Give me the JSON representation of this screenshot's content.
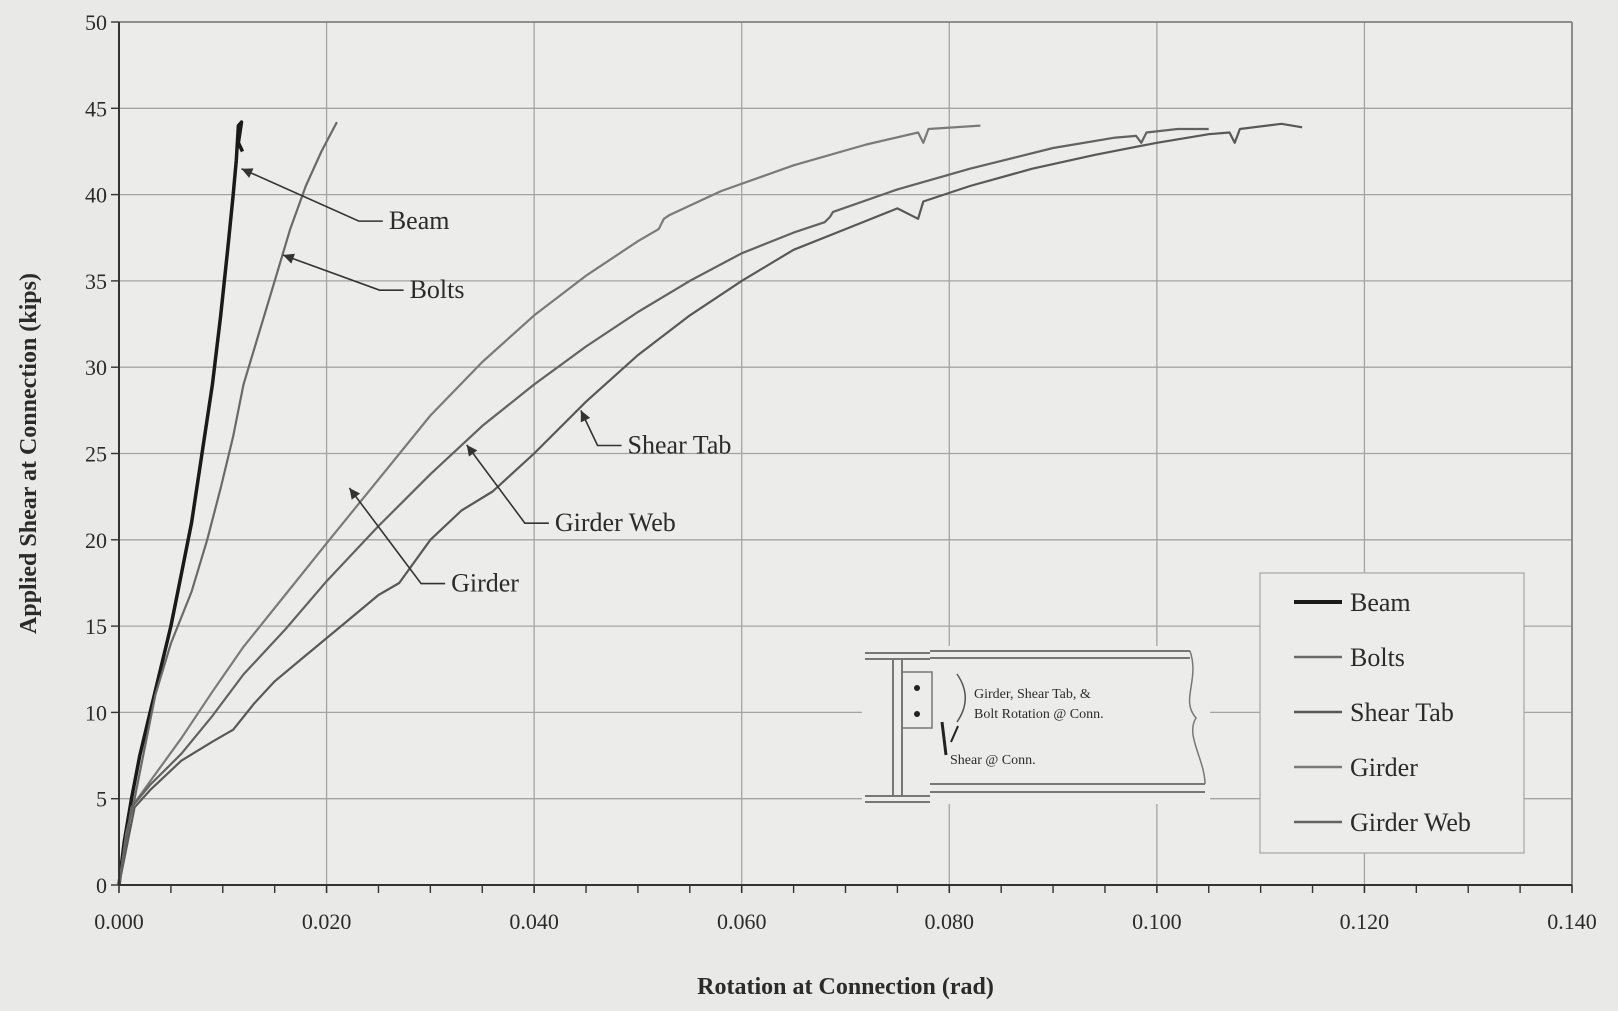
{
  "chart_data": {
    "type": "line",
    "title": "",
    "xlabel": "Rotation at Connection (rad)",
    "ylabel": "Applied Shear at Connection (kips)",
    "xlim": [
      0,
      0.14
    ],
    "ylim": [
      0,
      50
    ],
    "x_ticks": [
      "0.000",
      "0.020",
      "0.040",
      "0.060",
      "0.080",
      "0.100",
      "0.120",
      "0.140"
    ],
    "y_ticks": [
      "0",
      "5",
      "10",
      "15",
      "20",
      "25",
      "30",
      "35",
      "40",
      "45",
      "50"
    ],
    "grid": true,
    "legend_position": "bottom-right",
    "series": [
      {
        "name": "Beam",
        "color": "#1a1a1a",
        "points": [
          [
            0,
            0
          ],
          [
            0.0005,
            2.5
          ],
          [
            0.0012,
            5
          ],
          [
            0.002,
            7.5
          ],
          [
            0.003,
            10
          ],
          [
            0.004,
            12.5
          ],
          [
            0.005,
            15
          ],
          [
            0.006,
            18
          ],
          [
            0.007,
            21
          ],
          [
            0.008,
            25
          ],
          [
            0.009,
            29
          ],
          [
            0.0098,
            33
          ],
          [
            0.0105,
            37
          ],
          [
            0.011,
            40
          ],
          [
            0.0113,
            42
          ],
          [
            0.0115,
            44
          ],
          [
            0.0118,
            44.2
          ],
          [
            0.0115,
            43
          ],
          [
            0.0119,
            42.5
          ]
        ]
      },
      {
        "name": "Bolts",
        "color": "#6a6a6a",
        "points": [
          [
            0,
            0
          ],
          [
            0.0007,
            3
          ],
          [
            0.0015,
            5
          ],
          [
            0.0025,
            8
          ],
          [
            0.0035,
            11
          ],
          [
            0.005,
            14
          ],
          [
            0.007,
            17
          ],
          [
            0.0085,
            20
          ],
          [
            0.0098,
            23
          ],
          [
            0.011,
            26
          ],
          [
            0.012,
            29
          ],
          [
            0.0135,
            32
          ],
          [
            0.015,
            35
          ],
          [
            0.0165,
            38
          ],
          [
            0.018,
            40.5
          ],
          [
            0.0195,
            42.5
          ],
          [
            0.021,
            44.2
          ]
        ]
      },
      {
        "name": "Shear Tab",
        "color": "#585858",
        "points": [
          [
            0,
            0
          ],
          [
            0.0015,
            4.5
          ],
          [
            0.003,
            5.5
          ],
          [
            0.006,
            7.2
          ],
          [
            0.009,
            8.3
          ],
          [
            0.011,
            9
          ],
          [
            0.013,
            10.5
          ],
          [
            0.015,
            11.8
          ],
          [
            0.018,
            13.3
          ],
          [
            0.021,
            14.8
          ],
          [
            0.025,
            16.8
          ],
          [
            0.027,
            17.5
          ],
          [
            0.03,
            20
          ],
          [
            0.033,
            21.7
          ],
          [
            0.036,
            22.8
          ],
          [
            0.04,
            25
          ],
          [
            0.045,
            28
          ],
          [
            0.05,
            30.7
          ],
          [
            0.055,
            33
          ],
          [
            0.06,
            35
          ],
          [
            0.065,
            36.8
          ],
          [
            0.07,
            38
          ],
          [
            0.075,
            39.2
          ],
          [
            0.077,
            38.6
          ],
          [
            0.0775,
            39.6
          ],
          [
            0.082,
            40.5
          ],
          [
            0.088,
            41.5
          ],
          [
            0.094,
            42.3
          ],
          [
            0.1,
            43
          ],
          [
            0.105,
            43.5
          ],
          [
            0.107,
            43.6
          ],
          [
            0.1075,
            43
          ],
          [
            0.108,
            43.8
          ],
          [
            0.112,
            44.1
          ],
          [
            0.114,
            43.9
          ]
        ]
      },
      {
        "name": "Girder",
        "color": "#7a7a7a",
        "points": [
          [
            0,
            0
          ],
          [
            0.0012,
            4.5
          ],
          [
            0.003,
            6
          ],
          [
            0.006,
            8.5
          ],
          [
            0.009,
            11.2
          ],
          [
            0.012,
            13.8
          ],
          [
            0.016,
            16.8
          ],
          [
            0.02,
            19.8
          ],
          [
            0.025,
            23.5
          ],
          [
            0.03,
            27.2
          ],
          [
            0.035,
            30.3
          ],
          [
            0.04,
            33
          ],
          [
            0.045,
            35.3
          ],
          [
            0.05,
            37.3
          ],
          [
            0.052,
            38
          ],
          [
            0.0525,
            38.6
          ],
          [
            0.053,
            38.8
          ],
          [
            0.058,
            40.2
          ],
          [
            0.065,
            41.7
          ],
          [
            0.072,
            42.9
          ],
          [
            0.077,
            43.6
          ],
          [
            0.0775,
            43
          ],
          [
            0.078,
            43.8
          ],
          [
            0.083,
            44
          ]
        ]
      },
      {
        "name": "Girder Web",
        "color": "#626262",
        "points": [
          [
            0,
            0
          ],
          [
            0.0012,
            4.5
          ],
          [
            0.003,
            5.8
          ],
          [
            0.006,
            7.6
          ],
          [
            0.009,
            9.8
          ],
          [
            0.012,
            12.2
          ],
          [
            0.016,
            14.8
          ],
          [
            0.02,
            17.6
          ],
          [
            0.025,
            20.8
          ],
          [
            0.03,
            23.8
          ],
          [
            0.035,
            26.6
          ],
          [
            0.04,
            29
          ],
          [
            0.045,
            31.2
          ],
          [
            0.05,
            33.2
          ],
          [
            0.055,
            35
          ],
          [
            0.06,
            36.6
          ],
          [
            0.065,
            37.8
          ],
          [
            0.068,
            38.4
          ],
          [
            0.0685,
            38.7
          ],
          [
            0.0688,
            39
          ],
          [
            0.075,
            40.3
          ],
          [
            0.082,
            41.5
          ],
          [
            0.09,
            42.7
          ],
          [
            0.096,
            43.3
          ],
          [
            0.098,
            43.4
          ],
          [
            0.0985,
            43
          ],
          [
            0.099,
            43.6
          ],
          [
            0.102,
            43.8
          ],
          [
            0.105,
            43.8
          ]
        ]
      }
    ],
    "annotations": [
      {
        "text": "Beam",
        "target": [
          0.0118,
          41.5
        ],
        "label_at": [
          0.026,
          38
        ]
      },
      {
        "text": "Bolts",
        "target": [
          0.0158,
          36.5
        ],
        "label_at": [
          0.028,
          34
        ]
      },
      {
        "text": "Shear Tab",
        "target": [
          0.0445,
          27.5
        ],
        "label_at": [
          0.049,
          25
        ]
      },
      {
        "text": "Girder Web",
        "target": [
          0.0335,
          25.5
        ],
        "label_at": [
          0.042,
          20.5
        ]
      },
      {
        "text": "Girder",
        "target": [
          0.0222,
          23
        ],
        "label_at": [
          0.032,
          17
        ]
      }
    ]
  },
  "inset": {
    "rotation_label_line1": "Girder, Shear Tab, &",
    "rotation_label_line2": "Bolt Rotation @ Conn.",
    "shear_label": "Shear @ Conn."
  }
}
